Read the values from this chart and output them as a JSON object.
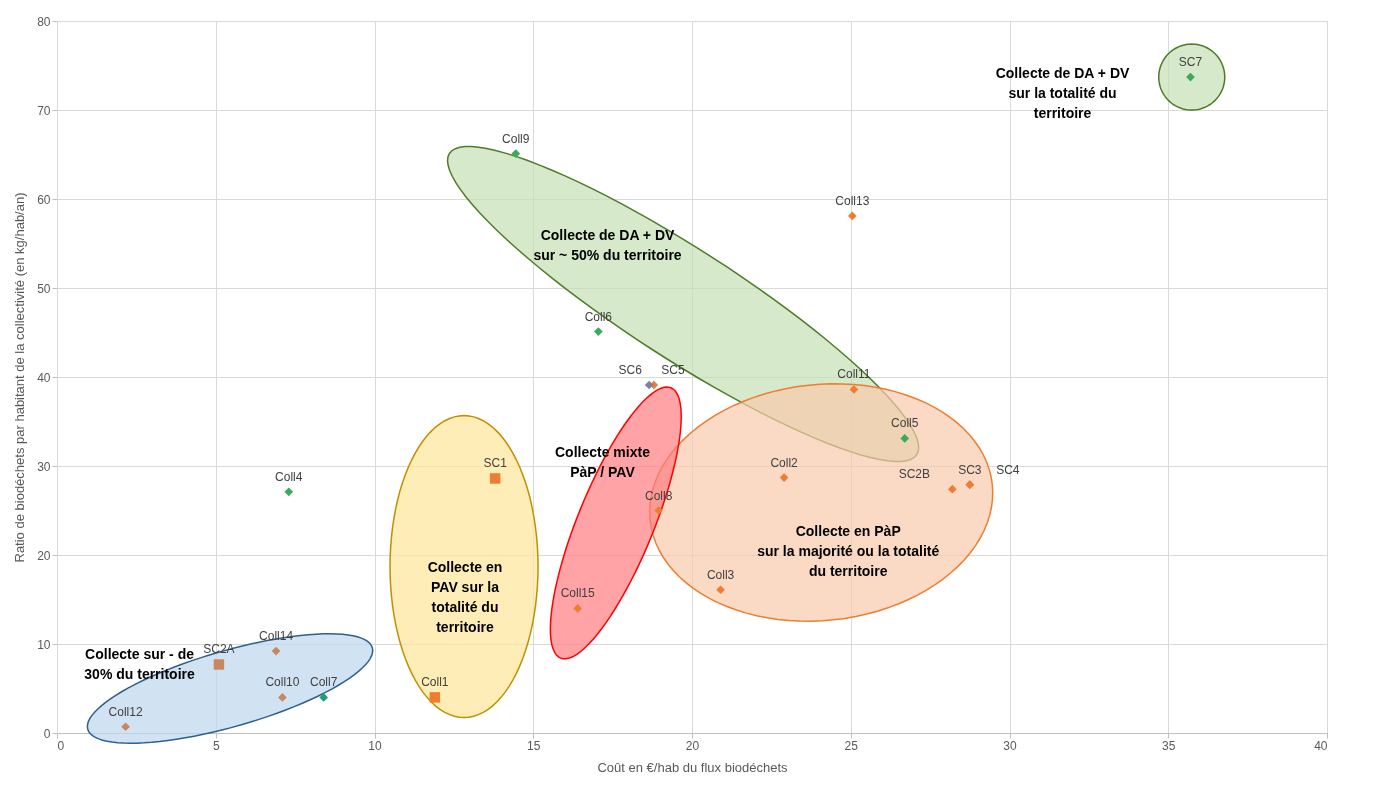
{
  "chart_data": {
    "type": "scatter",
    "xlabel": "Coût en €/hab du flux biodéchets",
    "ylabel": "Ratio de biodéchets par habitant de la collectivité (en kg/hab/an)",
    "xlim": [
      0,
      40
    ],
    "xticks": [
      0,
      5,
      10,
      15,
      20,
      25,
      30,
      35,
      40
    ],
    "ylim": [
      0,
      80
    ],
    "yticks": [
      0,
      10,
      20,
      30,
      40,
      50,
      60,
      70,
      80
    ],
    "grid": true,
    "marker": "diamond",
    "series": [
      {
        "color": "#ed7d31",
        "x": [
          16.4,
          18.8,
          18.95,
          20.9,
          22.9,
          25.05,
          25.1,
          28.2,
          28.75,
          28.75
        ],
        "values": [
          14.0,
          39.1,
          25.0,
          16.1,
          28.7,
          58.1,
          38.6,
          27.4,
          27.9,
          27.9
        ],
        "value_labels": [
          "Coll15",
          "SC5",
          "Coll8",
          "Coll3",
          "Coll2",
          "Coll13",
          "Coll11",
          "SC2B",
          "SC3",
          "SC4"
        ]
      },
      {
        "color": "#ed7d31",
        "marker": "square",
        "x": [
          11.9,
          13.8
        ],
        "values": [
          4.0,
          28.6
        ],
        "value_labels": [
          "Coll1",
          "SC1"
        ]
      },
      {
        "color": "#3aaa5c",
        "x": [
          7.3,
          14.45,
          17.05,
          26.7,
          35.7
        ],
        "values": [
          27.1,
          65.1,
          45.1,
          33.1,
          73.7
        ],
        "value_labels": [
          "Coll4",
          "Coll9",
          "Coll6",
          "Coll5",
          "SC7"
        ]
      },
      {
        "color": "#1a9e77",
        "x": [
          8.4
        ],
        "values": [
          4.0
        ],
        "value_labels": [
          "Coll7"
        ]
      },
      {
        "color": "#c8875e",
        "x": [
          2.16,
          6.9,
          7.1
        ],
        "values": [
          0.7,
          9.2,
          4.0
        ],
        "value_labels": [
          "Coll12",
          "Coll14",
          "Coll10"
        ]
      },
      {
        "color": "#c8875e",
        "marker": "square",
        "x": [
          5.1
        ],
        "values": [
          7.7
        ],
        "value_labels": [
          "SC2A"
        ]
      },
      {
        "color": "#7f7fa8",
        "x": [
          18.65
        ],
        "values": [
          39.1
        ],
        "value_labels": [
          "SC6"
        ]
      }
    ],
    "annotations": [
      "Collecte de DA + DV\nsur  la totalité du\nterritoire",
      "Collecte de DA + DV\nsur ~ 50% du territoire",
      "Collecte mixte\nPàP / PAV",
      "Collecte en\nPAV sur la\ntotalité du\nterritoire",
      "Collecte en PàP\nsur la majorité ou la totalité\ndu territoire",
      "Collecte sur - de\n30% du territoire"
    ]
  }
}
